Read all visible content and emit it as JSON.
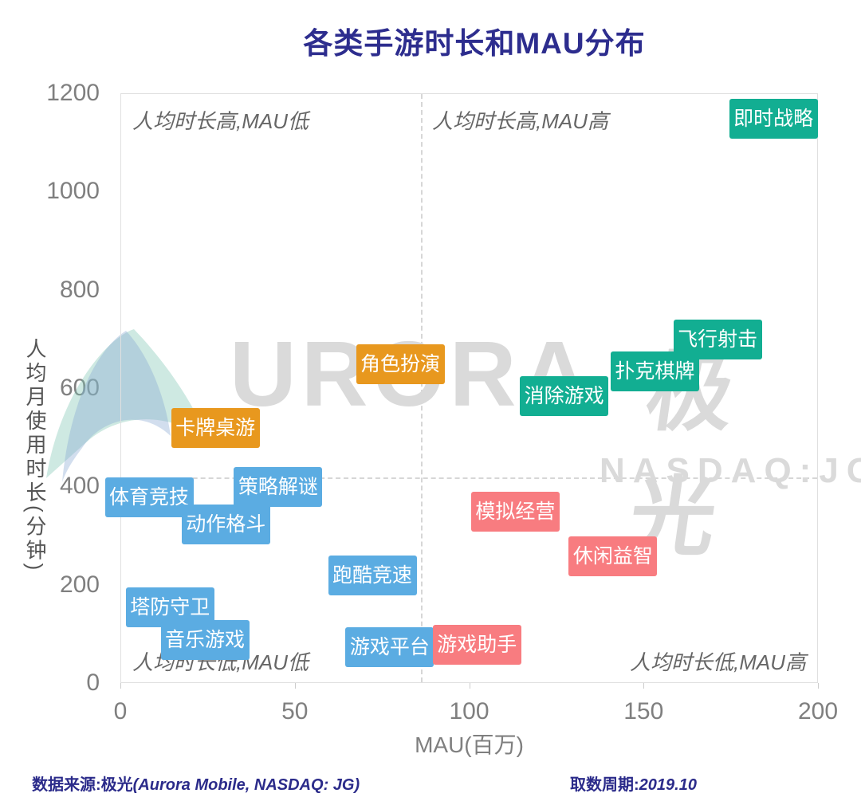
{
  "title": "各类手游时长和MAU分布",
  "watermark": {
    "text_latin": "URORA",
    "text_cn": "极光",
    "ticker": "NASDAQ:JG",
    "logo": "aurora-double-arc"
  },
  "footer": {
    "source_label": "数据来源:",
    "source_brand": "极光",
    "source_latin": "(Aurora Mobile, NASDAQ: JG)",
    "period_label": "取数周期:",
    "period_value": "2019.10"
  },
  "colors": {
    "teal": "#12ae92",
    "orange": "#e8981e",
    "blue": "#5bace2",
    "pink": "#f87c80",
    "title_text": "#2d2d8e",
    "footer_text": "#2b2b8a",
    "quadrant_text": "#666666",
    "axis_text": "#7f7f7f",
    "watermark_text": "#dadada"
  },
  "chart_data": {
    "type": "scatter",
    "title": "各类手游时长和MAU分布",
    "xlabel": "MAU(百万)",
    "ylabel": "人均月使用时长(分钟)",
    "xlim": [
      0,
      200
    ],
    "ylim": [
      0,
      1200
    ],
    "x_ticks": [
      0,
      50,
      100,
      150,
      200
    ],
    "y_ticks": [
      0,
      200,
      400,
      600,
      800,
      1000,
      1200
    ],
    "grid": false,
    "legend": false,
    "quadrant_divider": {
      "x": 86,
      "y": 420,
      "style": "dashed"
    },
    "quadrant_labels": {
      "top_left": "人均时长高,MAU低",
      "top_right": "人均时长高,MAU高",
      "bottom_left": "人均时长低,MAU低",
      "bottom_right": "人均时长低,MAU高"
    },
    "points": [
      {
        "label": "即时战略",
        "x": 187,
        "y": 1150,
        "color": "teal"
      },
      {
        "label": "飞行射击",
        "x": 171,
        "y": 700,
        "color": "teal"
      },
      {
        "label": "扑克棋牌",
        "x": 153,
        "y": 635,
        "color": "teal"
      },
      {
        "label": "消除游戏",
        "x": 127,
        "y": 585,
        "color": "teal"
      },
      {
        "label": "角色扮演",
        "x": 80,
        "y": 650,
        "color": "orange"
      },
      {
        "label": "卡牌桌游",
        "x": 27,
        "y": 520,
        "color": "orange"
      },
      {
        "label": "体育竞技",
        "x": 8,
        "y": 380,
        "color": "blue"
      },
      {
        "label": "动作格斗",
        "x": 30,
        "y": 325,
        "color": "blue"
      },
      {
        "label": "策略解谜",
        "x": 45,
        "y": 400,
        "color": "blue"
      },
      {
        "label": "塔防守卫",
        "x": 14,
        "y": 155,
        "color": "blue"
      },
      {
        "label": "音乐游戏",
        "x": 24,
        "y": 90,
        "color": "blue"
      },
      {
        "label": "跑酷竞速",
        "x": 72,
        "y": 220,
        "color": "blue"
      },
      {
        "label": "模拟经营",
        "x": 113,
        "y": 350,
        "color": "pink"
      },
      {
        "label": "休闲益智",
        "x": 141,
        "y": 260,
        "color": "pink"
      },
      {
        "label": "游戏平台",
        "x": 77,
        "y": 75,
        "color": "blue"
      },
      {
        "label": "游戏助手",
        "x": 102,
        "y": 80,
        "color": "pink"
      }
    ]
  }
}
